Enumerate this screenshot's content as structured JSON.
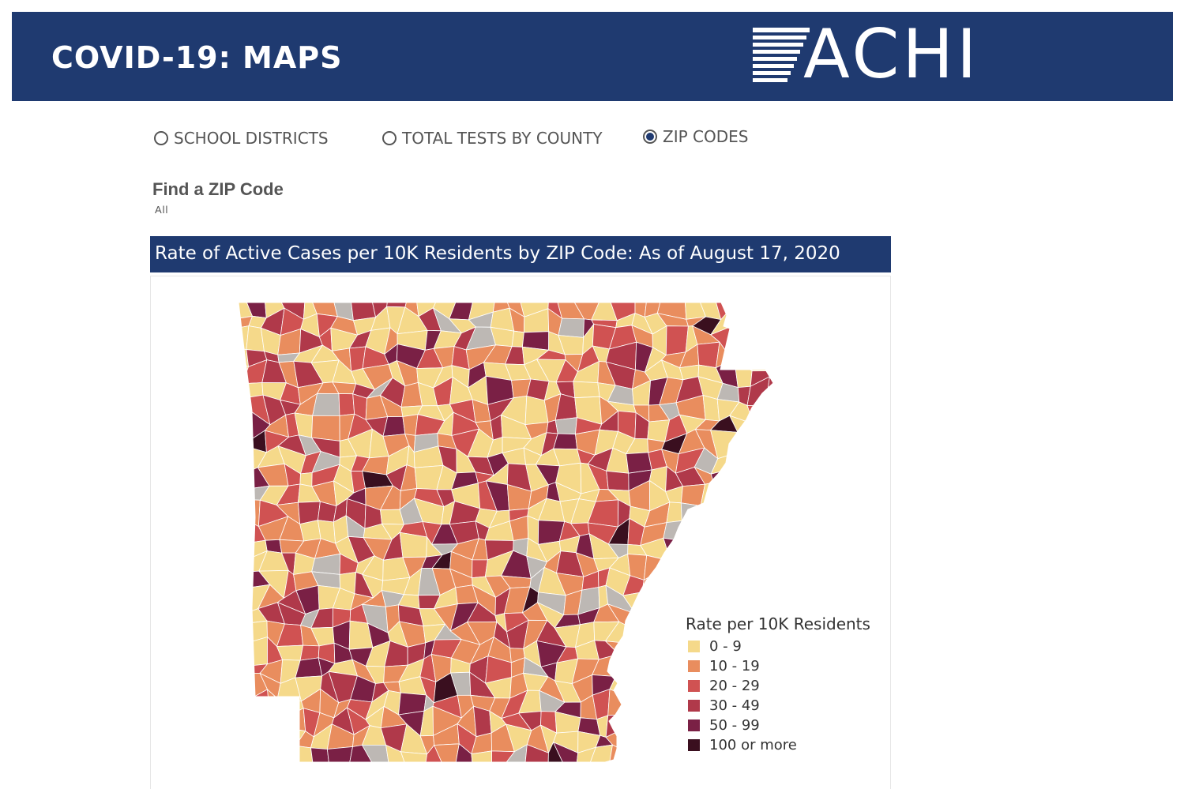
{
  "header": {
    "title": "COVID-19: MAPS",
    "logo_text": "ACHI"
  },
  "nav": {
    "options": [
      {
        "label": "SCHOOL DISTRICTS",
        "selected": false
      },
      {
        "label": "TOTAL TESTS BY COUNTY",
        "selected": false
      },
      {
        "label": "ZIP CODES",
        "selected": true
      }
    ]
  },
  "filter": {
    "label": "Find a ZIP Code",
    "value": "All"
  },
  "map": {
    "title": "Rate of Active Cases per 10K Residents by ZIP Code: As of August 17, 2020",
    "region": "Arkansas",
    "colors": {
      "0 - 9": "#f5d98a",
      "10 - 19": "#e98d5e",
      "20 - 29": "#d05252",
      "30 - 49": "#b0394a",
      "50 - 99": "#7a2045",
      "100 or more": "#3a0f1f",
      "no data": "#bdb8b4",
      "boundary": "#ffffff"
    },
    "legend": {
      "title": "Rate per 10K Residents",
      "items": [
        {
          "label": "0 - 9",
          "color": "#f5d98a"
        },
        {
          "label": "10 - 19",
          "color": "#e98d5e"
        },
        {
          "label": "20 - 29",
          "color": "#d05252"
        },
        {
          "label": "30 - 49",
          "color": "#b0394a"
        },
        {
          "label": "50 - 99",
          "color": "#7a2045"
        },
        {
          "label": "100 or more",
          "color": "#3a0f1f"
        }
      ]
    }
  }
}
